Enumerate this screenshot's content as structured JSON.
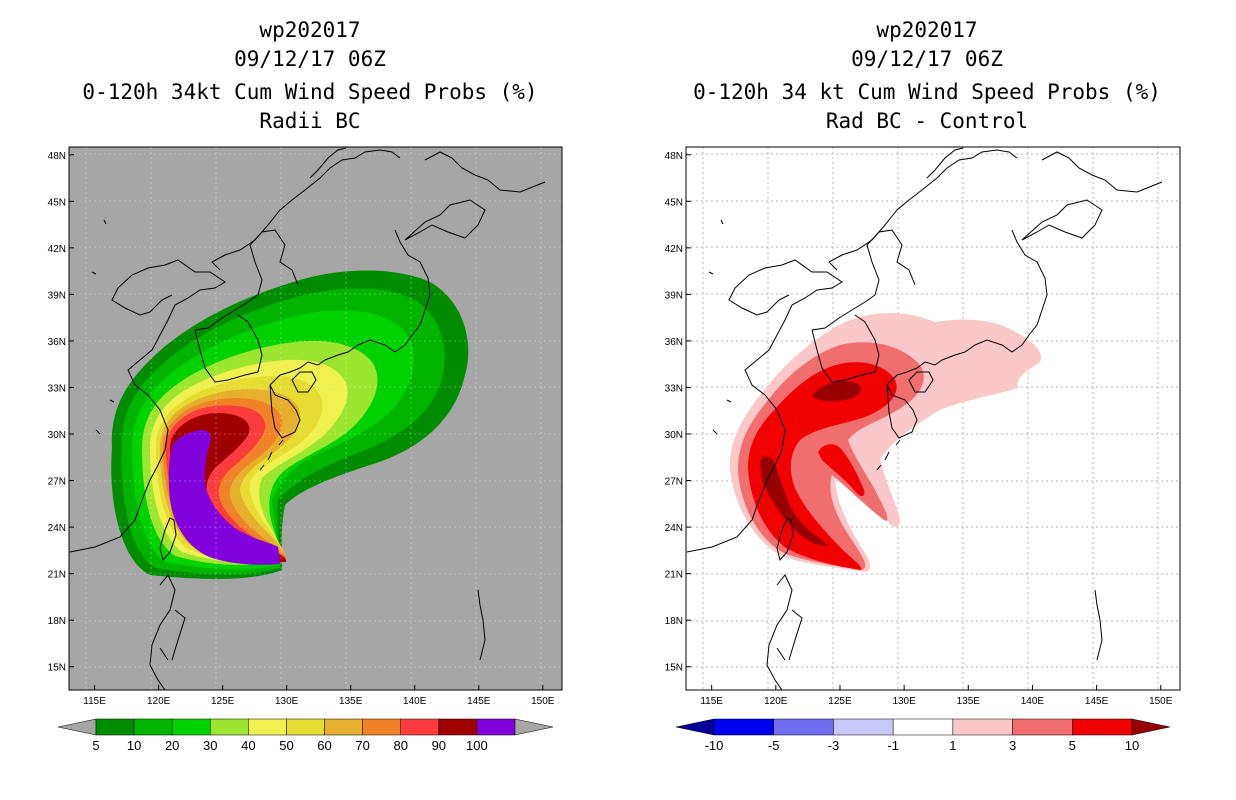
{
  "chart_data": [
    {
      "type": "heatmap",
      "title": [
        "wp202017",
        "09/12/17 06Z",
        "0-120h 34kt Cum Wind Speed Probs (%)",
        "Radii BC"
      ],
      "xlabel": "",
      "ylabel": "",
      "x_ticks": [
        "115E",
        "120E",
        "125E",
        "130E",
        "135E",
        "140E",
        "145E",
        "150E"
      ],
      "y_ticks": [
        "15N",
        "18N",
        "21N",
        "24N",
        "27N",
        "30N",
        "33N",
        "36N",
        "39N",
        "42N",
        "45N",
        "48N"
      ],
      "xlim": [
        113.0,
        151.5
      ],
      "ylim": [
        13.5,
        48.5
      ],
      "background": "#a6a6a6",
      "colorbar": {
        "labels": [
          "5",
          "10",
          "20",
          "30",
          "40",
          "50",
          "60",
          "70",
          "80",
          "90",
          "100"
        ],
        "colors": [
          "#008c00",
          "#00b400",
          "#00d200",
          "#9ce632",
          "#f0f050",
          "#e6dc32",
          "#e6af2d",
          "#f08228",
          "#fa3c3c",
          "#a00000",
          "#8200dc"
        ]
      }
    },
    {
      "type": "heatmap",
      "title": [
        "wp202017",
        "09/12/17 06Z",
        "0-120h 34 kt Cum Wind Speed Probs (%)",
        "Rad BC - Control"
      ],
      "xlabel": "",
      "ylabel": "",
      "x_ticks": [
        "115E",
        "120E",
        "125E",
        "130E",
        "135E",
        "140E",
        "145E",
        "150E"
      ],
      "y_ticks": [
        "15N",
        "18N",
        "21N",
        "24N",
        "27N",
        "30N",
        "33N",
        "36N",
        "39N",
        "42N",
        "45N",
        "48N"
      ],
      "xlim": [
        113.0,
        151.5
      ],
      "ylim": [
        13.5,
        48.5
      ],
      "background": "#ffffff",
      "colorbar": {
        "labels": [
          "-10",
          "-5",
          "-3",
          "-1",
          "1",
          "3",
          "5",
          "10"
        ],
        "colors": [
          "#000096",
          "#0000f0",
          "#6e6ef0",
          "#c8c8fa",
          "#ffffff",
          "#fac8c8",
          "#f06e6e",
          "#f00000",
          "#960000"
        ]
      }
    }
  ]
}
